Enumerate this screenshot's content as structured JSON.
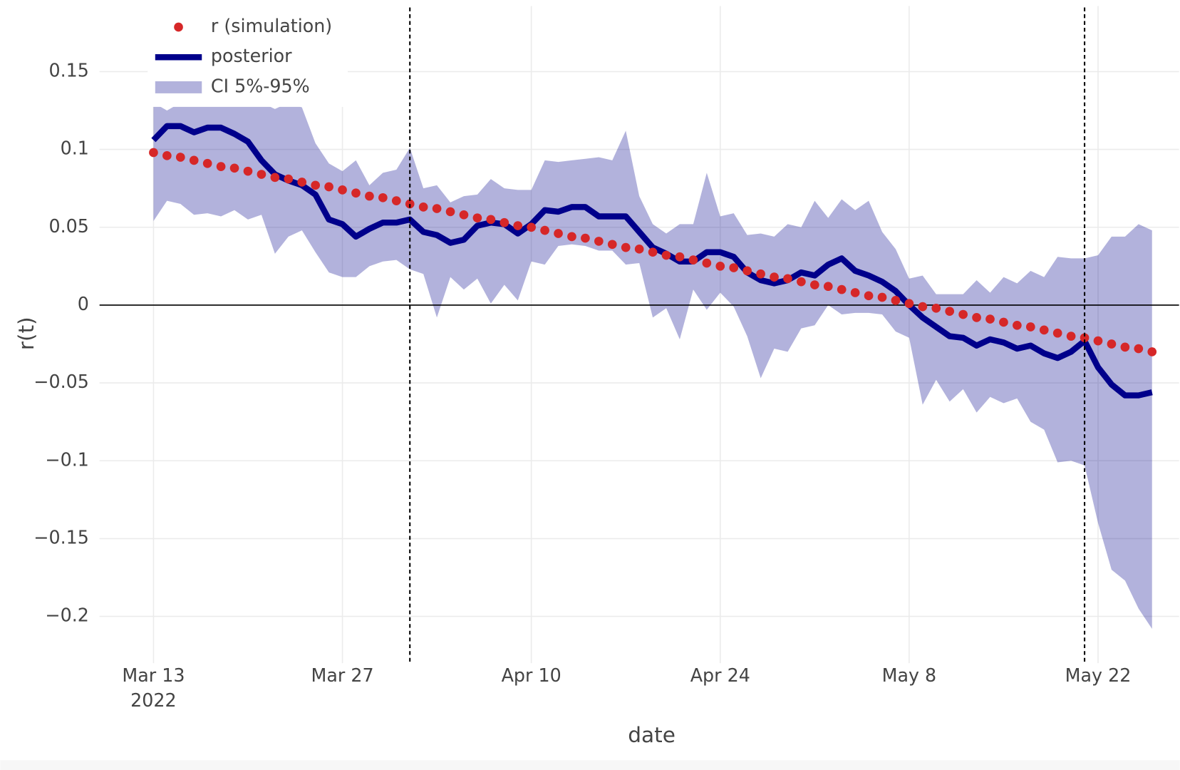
{
  "chart_data": {
    "type": "line",
    "xlabel": "date",
    "ylabel": "r(t)",
    "x": [
      "2022-03-13",
      "2022-03-14",
      "2022-03-15",
      "2022-03-16",
      "2022-03-17",
      "2022-03-18",
      "2022-03-19",
      "2022-03-20",
      "2022-03-21",
      "2022-03-22",
      "2022-03-23",
      "2022-03-24",
      "2022-03-25",
      "2022-03-26",
      "2022-03-27",
      "2022-03-28",
      "2022-03-29",
      "2022-03-30",
      "2022-03-31",
      "2022-04-01",
      "2022-04-02",
      "2022-04-03",
      "2022-04-04",
      "2022-04-05",
      "2022-04-06",
      "2022-04-07",
      "2022-04-08",
      "2022-04-09",
      "2022-04-10",
      "2022-04-11",
      "2022-04-12",
      "2022-04-13",
      "2022-04-14",
      "2022-04-15",
      "2022-04-16",
      "2022-04-17",
      "2022-04-18",
      "2022-04-19",
      "2022-04-20",
      "2022-04-21",
      "2022-04-22",
      "2022-04-23",
      "2022-04-24",
      "2022-04-25",
      "2022-04-26",
      "2022-04-27",
      "2022-04-28",
      "2022-04-29",
      "2022-04-30",
      "2022-05-01",
      "2022-05-02",
      "2022-05-03",
      "2022-05-04",
      "2022-05-05",
      "2022-05-06",
      "2022-05-07",
      "2022-05-08",
      "2022-05-09",
      "2022-05-10",
      "2022-05-11",
      "2022-05-12",
      "2022-05-13",
      "2022-05-14",
      "2022-05-15",
      "2022-05-16",
      "2022-05-17",
      "2022-05-18",
      "2022-05-19",
      "2022-05-20",
      "2022-05-21",
      "2022-05-22",
      "2022-05-23",
      "2022-05-24",
      "2022-05-25",
      "2022-05-26"
    ],
    "series": [
      {
        "name": "r (simulation)",
        "color": "#d62728",
        "mode": "markers",
        "values": [
          0.098,
          0.096,
          0.095,
          0.093,
          0.091,
          0.089,
          0.088,
          0.086,
          0.084,
          0.082,
          0.081,
          0.079,
          0.077,
          0.076,
          0.074,
          0.072,
          0.07,
          0.069,
          0.067,
          0.065,
          0.063,
          0.062,
          0.06,
          0.058,
          0.056,
          0.055,
          0.053,
          0.051,
          0.05,
          0.048,
          0.046,
          0.044,
          0.043,
          0.041,
          0.039,
          0.037,
          0.036,
          0.034,
          0.032,
          0.031,
          0.029,
          0.027,
          0.025,
          0.024,
          0.022,
          0.02,
          0.018,
          0.017,
          0.015,
          0.013,
          0.012,
          0.01,
          0.008,
          0.006,
          0.005,
          0.003,
          0.001,
          -0.001,
          -0.002,
          -0.004,
          -0.006,
          -0.008,
          -0.009,
          -0.011,
          -0.013,
          -0.014,
          -0.016,
          -0.018,
          -0.02,
          -0.021,
          -0.023,
          -0.025,
          -0.027,
          -0.028,
          -0.03
        ]
      },
      {
        "name": "posterior",
        "color": "#00008b",
        "mode": "lines",
        "values": [
          0.106,
          0.115,
          0.115,
          0.111,
          0.114,
          0.114,
          0.11,
          0.105,
          0.093,
          0.084,
          0.08,
          0.077,
          0.071,
          0.055,
          0.052,
          0.044,
          0.049,
          0.053,
          0.053,
          0.055,
          0.047,
          0.045,
          0.04,
          0.042,
          0.051,
          0.053,
          0.052,
          0.046,
          0.052,
          0.061,
          0.06,
          0.063,
          0.063,
          0.057,
          0.057,
          0.057,
          0.047,
          0.037,
          0.033,
          0.028,
          0.028,
          0.034,
          0.034,
          0.031,
          0.021,
          0.016,
          0.014,
          0.016,
          0.021,
          0.019,
          0.026,
          0.03,
          0.022,
          0.019,
          0.015,
          0.009,
          0.0,
          -0.008,
          -0.014,
          -0.02,
          -0.021,
          -0.026,
          -0.022,
          -0.024,
          -0.028,
          -0.026,
          -0.031,
          -0.034,
          -0.03,
          -0.023,
          -0.04,
          -0.051,
          -0.058,
          -0.058,
          -0.056
        ]
      },
      {
        "name": "CI 5%-95%",
        "color": "rgba(0,0,139,0.3)",
        "mode": "band",
        "upper": [
          0.13,
          0.125,
          0.13,
          0.128,
          0.13,
          0.13,
          0.132,
          0.13,
          0.13,
          0.126,
          0.13,
          0.127,
          0.104,
          0.091,
          0.086,
          0.093,
          0.077,
          0.085,
          0.087,
          0.101,
          0.075,
          0.077,
          0.066,
          0.07,
          0.071,
          0.081,
          0.075,
          0.074,
          0.074,
          0.093,
          0.092,
          0.093,
          0.094,
          0.095,
          0.093,
          0.112,
          0.07,
          0.052,
          0.046,
          0.052,
          0.052,
          0.085,
          0.057,
          0.059,
          0.045,
          0.046,
          0.044,
          0.052,
          0.05,
          0.067,
          0.056,
          0.068,
          0.061,
          0.067,
          0.047,
          0.036,
          0.017,
          0.019,
          0.007,
          0.007,
          0.007,
          0.016,
          0.008,
          0.018,
          0.014,
          0.022,
          0.018,
          0.031,
          0.03,
          0.03,
          0.032,
          0.044,
          0.044,
          0.052,
          0.048
        ],
        "lower": [
          0.054,
          0.067,
          0.065,
          0.058,
          0.059,
          0.057,
          0.061,
          0.055,
          0.058,
          0.033,
          0.044,
          0.048,
          0.034,
          0.021,
          0.018,
          0.018,
          0.025,
          0.028,
          0.029,
          0.023,
          0.02,
          -0.008,
          0.018,
          0.01,
          0.017,
          0.001,
          0.013,
          0.003,
          0.028,
          0.026,
          0.038,
          0.039,
          0.038,
          0.035,
          0.035,
          0.026,
          0.027,
          -0.008,
          -0.002,
          -0.022,
          0.01,
          -0.003,
          0.008,
          -0.001,
          -0.02,
          -0.047,
          -0.028,
          -0.03,
          -0.015,
          -0.013,
          0.0,
          -0.006,
          -0.005,
          -0.005,
          -0.006,
          -0.017,
          -0.021,
          -0.064,
          -0.048,
          -0.062,
          -0.054,
          -0.069,
          -0.059,
          -0.063,
          -0.06,
          -0.075,
          -0.08,
          -0.101,
          -0.1,
          -0.103,
          -0.14,
          -0.17,
          -0.177,
          -0.195,
          -0.208
        ]
      }
    ],
    "xlim": [
      "2022-03-09",
      "2022-05-28"
    ],
    "xticks": [
      {
        "value": "2022-03-13",
        "label": "Mar 13\n2022"
      },
      {
        "value": "2022-03-27",
        "label": "Mar 27"
      },
      {
        "value": "2022-04-10",
        "label": "Apr 10"
      },
      {
        "value": "2022-04-24",
        "label": "Apr 24"
      },
      {
        "value": "2022-05-08",
        "label": "May 8"
      },
      {
        "value": "2022-05-22",
        "label": "May 22"
      }
    ],
    "ylim": [
      -0.23,
      0.196
    ],
    "yticks": [
      0.15,
      0.1,
      0.05,
      0,
      {
        "value": -0.05,
        "label": "−0.05"
      },
      {
        "value": -0.1,
        "label": "−0.1"
      },
      {
        "value": -0.15,
        "label": "−0.15"
      },
      {
        "value": -0.2,
        "label": "−0.2"
      }
    ],
    "vlines": [
      "2022-04-01",
      "2022-05-21"
    ],
    "grid": true,
    "zeroline": true,
    "legend": "top-left"
  }
}
